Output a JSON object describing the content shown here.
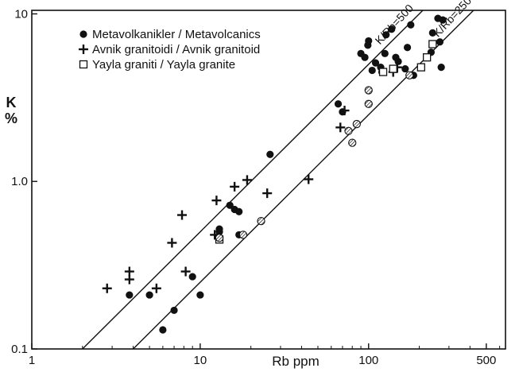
{
  "chart_data": {
    "type": "scatter",
    "title": "",
    "xlabel": "Rb ppm",
    "ylabel": "K",
    "ylabel_unit": "%",
    "x_scale": "log",
    "y_scale": "log",
    "xlim": [
      1,
      650
    ],
    "ylim": [
      0.1,
      10.5
    ],
    "x_ticks": [
      {
        "value": 1,
        "label": "1"
      },
      {
        "value": 10,
        "label": "10"
      },
      {
        "value": 100,
        "label": "100"
      },
      {
        "value": 500,
        "label": "500"
      }
    ],
    "y_ticks": [
      {
        "value": 0.1,
        "label": "0.1"
      },
      {
        "value": 1.0,
        "label": "1.0"
      },
      {
        "value": 10,
        "label": "10"
      }
    ],
    "grid": false,
    "legend_position": "top-left",
    "series": [
      {
        "name": "Metavolkanikler / Metavolcanics",
        "marker": "filled-circle",
        "points": [
          [
            3.8,
            0.21
          ],
          [
            5,
            0.21
          ],
          [
            6,
            0.13
          ],
          [
            7,
            0.17
          ],
          [
            9,
            0.27
          ],
          [
            10,
            0.21
          ],
          [
            13,
            0.52
          ],
          [
            13,
            0.5
          ],
          [
            15,
            0.72
          ],
          [
            16,
            0.68
          ],
          [
            17,
            0.66
          ],
          [
            17,
            0.48
          ],
          [
            26,
            1.45
          ],
          [
            66,
            2.9
          ],
          [
            70,
            2.6
          ],
          [
            90,
            5.8
          ],
          [
            95,
            5.5
          ],
          [
            99,
            6.5
          ],
          [
            100,
            6.9
          ],
          [
            105,
            4.6
          ],
          [
            110,
            5.1
          ],
          [
            118,
            4.8
          ],
          [
            120,
            4.5
          ],
          [
            125,
            5.8
          ],
          [
            127,
            7.5
          ],
          [
            137,
            8.1
          ],
          [
            145,
            5.5
          ],
          [
            150,
            5.2
          ],
          [
            165,
            4.7
          ],
          [
            170,
            6.3
          ],
          [
            178,
            8.6
          ],
          [
            185,
            4.3
          ],
          [
            235,
            5.9
          ],
          [
            240,
            7.7
          ],
          [
            258,
            9.4
          ],
          [
            265,
            6.8
          ],
          [
            270,
            4.8
          ],
          [
            276,
            9.2
          ]
        ]
      },
      {
        "name": "Avnik granitoidi / Avnik granitoid",
        "marker": "plus",
        "points": [
          [
            2.8,
            0.23
          ],
          [
            3.8,
            0.29
          ],
          [
            3.8,
            0.26
          ],
          [
            5.5,
            0.23
          ],
          [
            6.8,
            0.43
          ],
          [
            7.8,
            0.63
          ],
          [
            8.2,
            0.29
          ],
          [
            12.2,
            0.48
          ],
          [
            12.5,
            0.77
          ],
          [
            16,
            0.93
          ],
          [
            19,
            1.02
          ],
          [
            25,
            0.85
          ],
          [
            44,
            1.03
          ],
          [
            68,
            2.1
          ],
          [
            72,
            2.65
          ],
          [
            140,
            4.5
          ],
          [
            148,
            4.8
          ]
        ]
      },
      {
        "name": "Yayla graniti / Yayla granite",
        "marker": "open-square",
        "points": [
          [
            13,
            0.45
          ],
          [
            122,
            4.5
          ],
          [
            140,
            4.7
          ],
          [
            205,
            4.8
          ],
          [
            222,
            5.5
          ],
          [
            240,
            6.6
          ]
        ]
      },
      {
        "name": "",
        "marker": "hatched-circle",
        "points": [
          [
            13,
            0.46
          ],
          [
            18,
            0.48
          ],
          [
            23,
            0.58
          ],
          [
            76,
            2.0
          ],
          [
            80,
            1.7
          ],
          [
            85,
            2.2
          ],
          [
            100,
            2.9
          ],
          [
            100,
            3.5
          ],
          [
            175,
            4.3
          ]
        ]
      }
    ],
    "reference_lines": [
      {
        "label": "K/Rb=500",
        "ratio": 500,
        "x_range": [
          1.8,
          290
        ]
      },
      {
        "label": "K/Rb=250",
        "ratio": 250,
        "x_range": [
          3.6,
          430
        ]
      }
    ]
  }
}
